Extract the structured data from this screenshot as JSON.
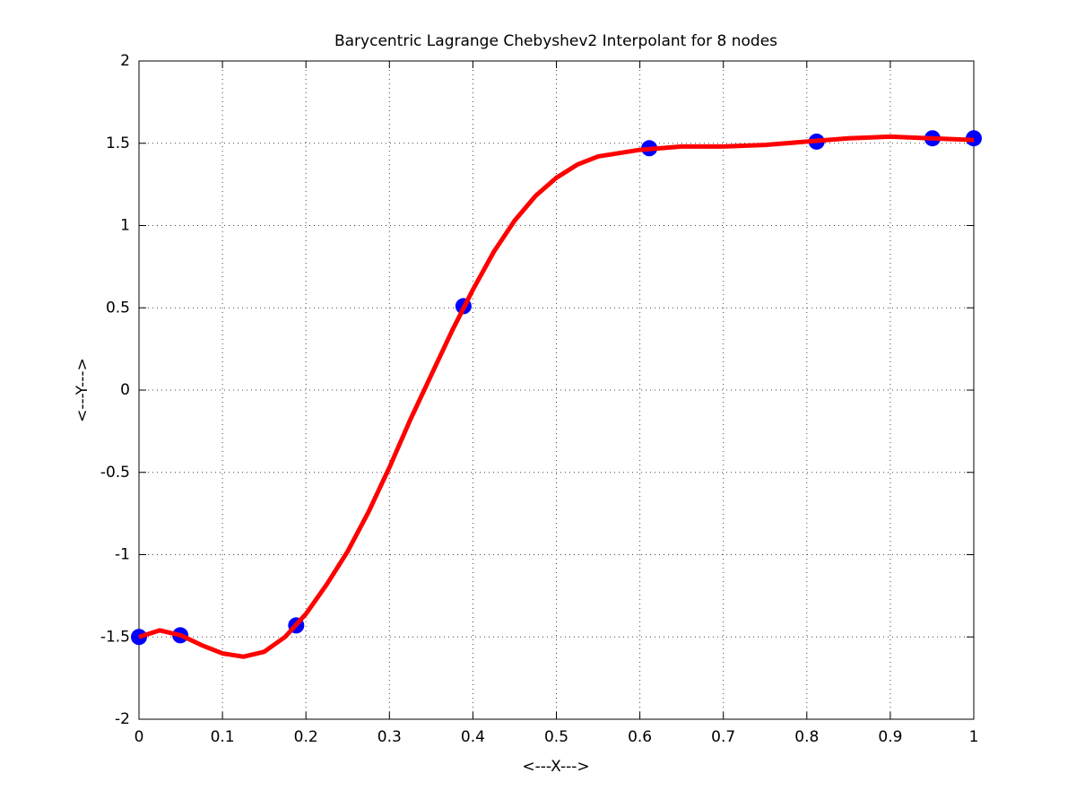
{
  "chart_data": {
    "type": "line",
    "title": "Barycentric Lagrange Chebyshev2 Interpolant for 8 nodes",
    "x_label": "<---X--->",
    "y_label": "<---Y--->",
    "xlim": [
      0,
      1
    ],
    "ylim": [
      -2,
      2
    ],
    "xticks": [
      0,
      0.1,
      0.2,
      0.3,
      0.4,
      0.5,
      0.6,
      0.7,
      0.8,
      0.9,
      1
    ],
    "yticks": [
      -2,
      -1.5,
      -1,
      -0.5,
      0,
      0.5,
      1,
      1.5,
      2
    ],
    "grid": true,
    "series": [
      {
        "style": "line",
        "color": "#ff0000",
        "x": [
          0,
          0.025,
          0.05,
          0.075,
          0.1,
          0.125,
          0.15,
          0.175,
          0.2,
          0.225,
          0.25,
          0.275,
          0.3,
          0.325,
          0.35,
          0.375,
          0.4,
          0.425,
          0.45,
          0.475,
          0.5,
          0.525,
          0.55,
          0.6,
          0.65,
          0.7,
          0.75,
          0.8,
          0.85,
          0.9,
          0.95,
          1
        ],
        "values": [
          -1.5,
          -1.46,
          -1.49,
          -1.55,
          -1.6,
          -1.62,
          -1.59,
          -1.5,
          -1.36,
          -1.18,
          -0.98,
          -0.74,
          -0.47,
          -0.18,
          0.09,
          0.36,
          0.61,
          0.84,
          1.03,
          1.18,
          1.29,
          1.37,
          1.42,
          1.46,
          1.48,
          1.48,
          1.49,
          1.51,
          1.53,
          1.54,
          1.53,
          1.52
        ]
      },
      {
        "style": "markers",
        "color": "#0000ff",
        "x": [
          0,
          0.0495,
          0.1883,
          0.3887,
          0.6113,
          0.8117,
          0.9505,
          1
        ],
        "values": [
          -1.5,
          -1.49,
          -1.43,
          0.51,
          1.47,
          1.51,
          1.53,
          1.53
        ]
      }
    ]
  }
}
